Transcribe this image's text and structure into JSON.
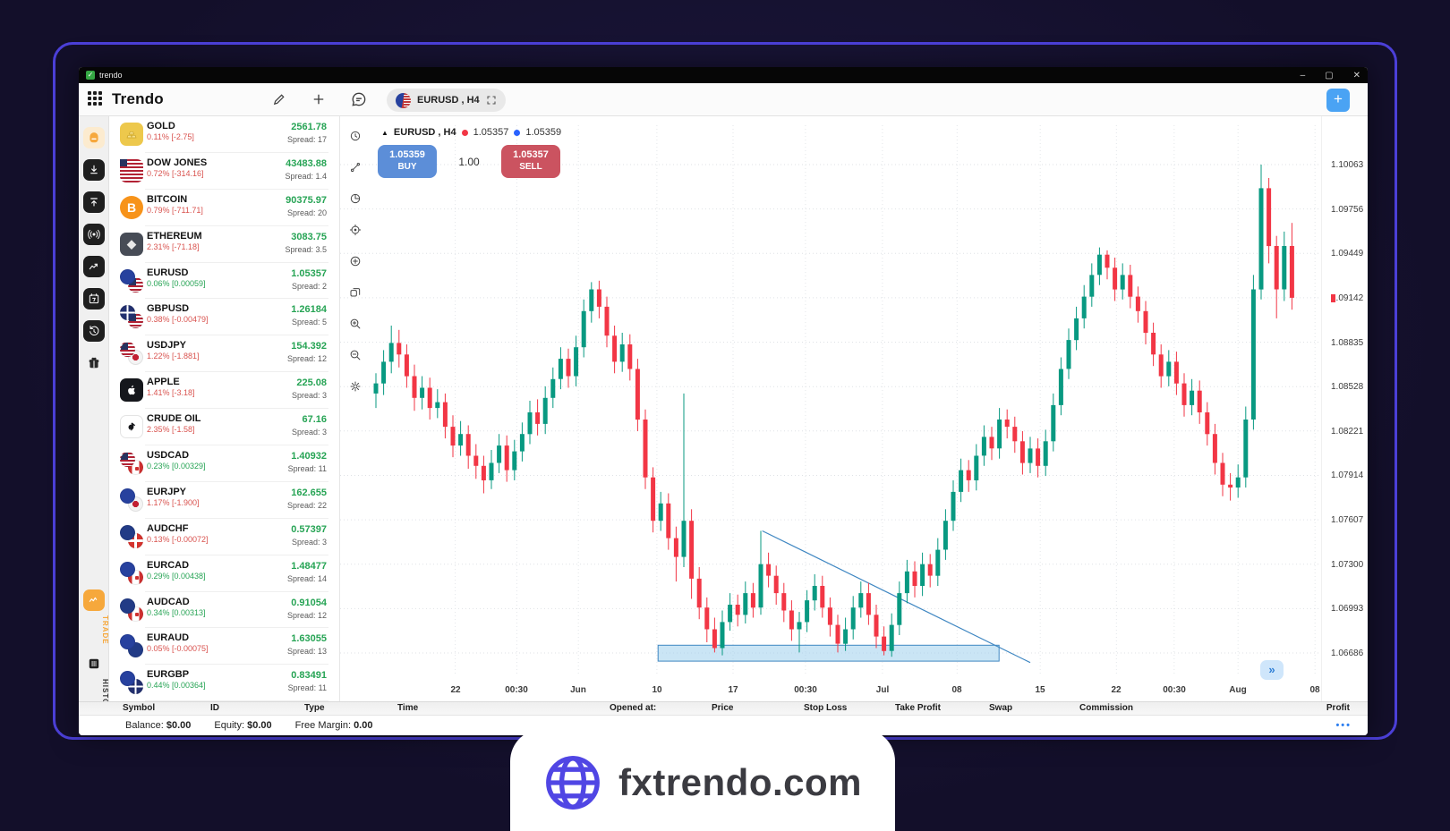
{
  "window": {
    "title": "trendo",
    "controls": {
      "minimize": "–",
      "maximize": "▢",
      "close": "✕"
    }
  },
  "toolbar": {
    "app_name": "Trendo",
    "icons": [
      "pencil-icon",
      "plus-icon",
      "chat-icon"
    ],
    "tab": {
      "label": "EURUSD , H4",
      "flag_icon": "eurusd-flag-icon",
      "expand_icon": "expand-icon"
    },
    "new_chart_label": "+"
  },
  "sidebar": {
    "items": [
      {
        "name": "home-icon",
        "style": "home"
      },
      {
        "name": "download-icon",
        "style": "dark"
      },
      {
        "name": "upload-icon",
        "style": "dark"
      },
      {
        "name": "signal-icon",
        "style": "dark"
      },
      {
        "name": "chart-icon",
        "style": "dark"
      },
      {
        "name": "calendar-icon",
        "style": "dark"
      },
      {
        "name": "history-icon",
        "style": "dark"
      },
      {
        "name": "gift-icon",
        "style": "plain"
      }
    ],
    "trade_label": "TRADE",
    "history_label": "HISTORY",
    "trade_color": "#f6a83c",
    "history_color": "#333333"
  },
  "watchlist": [
    {
      "name": "GOLD",
      "change": "0.11% [-2.75]",
      "trend": "down",
      "price": "2561.78",
      "spread": "Spread: 17",
      "icon": "gold-icon"
    },
    {
      "name": "DOW JONES",
      "change": "0.72% [-314.16]",
      "trend": "down",
      "price": "43483.88",
      "spread": "Spread: 1.4",
      "icon": "us-flag-icon"
    },
    {
      "name": "BITCOIN",
      "change": "0.79% [-711.71]",
      "trend": "down",
      "price": "90375.97",
      "spread": "Spread: 20",
      "icon": "bitcoin-icon"
    },
    {
      "name": "ETHEREUM",
      "change": "2.31% [-71.18]",
      "trend": "down",
      "price": "3083.75",
      "spread": "Spread: 3.5",
      "icon": "ethereum-icon"
    },
    {
      "name": "EURUSD",
      "change": "0.06% [0.00059]",
      "trend": "up",
      "price": "1.05357",
      "spread": "Spread: 2",
      "icon": "eurusd-flag-icon"
    },
    {
      "name": "GBPUSD",
      "change": "0.38% [-0.00479]",
      "trend": "down",
      "price": "1.26184",
      "spread": "Spread: 5",
      "icon": "gbpusd-flag-icon"
    },
    {
      "name": "USDJPY",
      "change": "1.22% [-1.881]",
      "trend": "down",
      "price": "154.392",
      "spread": "Spread: 12",
      "icon": "usdjpy-flag-icon"
    },
    {
      "name": "APPLE",
      "change": "1.41% [-3.18]",
      "trend": "down",
      "price": "225.08",
      "spread": "Spread: 3",
      "icon": "apple-icon"
    },
    {
      "name": "CRUDE OIL",
      "change": "2.35% [-1.58]",
      "trend": "down",
      "price": "67.16",
      "spread": "Spread: 3",
      "icon": "oil-icon"
    },
    {
      "name": "USDCAD",
      "change": "0.23% [0.00329]",
      "trend": "up",
      "price": "1.40932",
      "spread": "Spread: 11",
      "icon": "usdcad-flag-icon"
    },
    {
      "name": "EURJPY",
      "change": "1.17% [-1.900]",
      "trend": "down",
      "price": "162.655",
      "spread": "Spread: 22",
      "icon": "eurjpy-flag-icon"
    },
    {
      "name": "AUDCHF",
      "change": "0.13% [-0.00072]",
      "trend": "down",
      "price": "0.57397",
      "spread": "Spread: 3",
      "icon": "audchf-flag-icon"
    },
    {
      "name": "EURCAD",
      "change": "0.29% [0.00438]",
      "trend": "up",
      "price": "1.48477",
      "spread": "Spread: 14",
      "icon": "eurcad-flag-icon"
    },
    {
      "name": "AUDCAD",
      "change": "0.34% [0.00313]",
      "trend": "up",
      "price": "0.91054",
      "spread": "Spread: 12",
      "icon": "audcad-flag-icon"
    },
    {
      "name": "EURAUD",
      "change": "0.05% [-0.00075]",
      "trend": "down",
      "price": "1.63055",
      "spread": "Spread: 13",
      "icon": "euraud-flag-icon"
    },
    {
      "name": "EURGBP",
      "change": "0.44% [0.00364]",
      "trend": "up",
      "price": "0.83491",
      "spread": "Spread: 11",
      "icon": "eurgbp-flag-icon"
    }
  ],
  "chart": {
    "header": {
      "symbol_label": "EURUSD , H4",
      "bid": "1.05357",
      "ask": "1.05359",
      "bid_dot_color": "#f23645",
      "ask_dot_color": "#2962ff"
    },
    "buy_button": {
      "price": "1.05359",
      "label": "BUY"
    },
    "volume": "1.00",
    "sell_button": {
      "price": "1.05357",
      "label": "SELL"
    },
    "toolbar_icons": [
      "clock-icon",
      "trendline-tool-icon",
      "interval-icon",
      "crosshair-icon",
      "add-circle-icon",
      "layers-icon",
      "zoom-in-icon",
      "zoom-out-icon",
      "settings-icon"
    ],
    "fast_forward_label": "»"
  },
  "chart_data": {
    "type": "candlestick",
    "symbol": "EURUSD",
    "timeframe": "H4",
    "title": "EURUSD , H4",
    "colors": {
      "up": "#089981",
      "down": "#f23645",
      "drawing": "#3f87c2",
      "drawing_fill": "#9ecfec"
    },
    "y_ticks": [
      1.10063,
      1.09756,
      1.09449,
      1.09142,
      1.08835,
      1.08528,
      1.08221,
      1.07914,
      1.07607,
      1.073,
      1.06993,
      1.06686
    ],
    "x_ticks": [
      {
        "label": "22",
        "index": 10.3
      },
      {
        "label": "00:30",
        "index": 18.3
      },
      {
        "label": "Jun",
        "index": 26.3
      },
      {
        "label": "10",
        "index": 36.5
      },
      {
        "label": "17",
        "index": 46.4
      },
      {
        "label": "00:30",
        "index": 55.8
      },
      {
        "label": "Jul",
        "index": 65.8
      },
      {
        "label": "08",
        "index": 75.5
      },
      {
        "label": "15",
        "index": 86.3
      },
      {
        "label": "22",
        "index": 96.2
      },
      {
        "label": "00:30",
        "index": 103.7
      },
      {
        "label": "Aug",
        "index": 112.0
      },
      {
        "label": "08",
        "index": 122.0
      }
    ],
    "last_price": 1.09142,
    "drawings": {
      "trendline": {
        "from": {
          "index": 50.2,
          "price": 1.0753
        },
        "to": {
          "index": 85,
          "price": 1.0662
        }
      },
      "rectangle": {
        "from_index": 37,
        "to_index": 80.6,
        "top": 1.0674,
        "bottom": 1.0663
      }
    },
    "candles": [
      [
        1.0848,
        1.0862,
        1.0838,
        1.0855
      ],
      [
        1.0855,
        1.0878,
        1.0847,
        1.087
      ],
      [
        1.087,
        1.0895,
        1.0862,
        1.0883
      ],
      [
        1.0883,
        1.0892,
        1.0866,
        1.0875
      ],
      [
        1.0875,
        1.0882,
        1.0852,
        1.086
      ],
      [
        1.086,
        1.0868,
        1.0836,
        1.0845
      ],
      [
        1.0845,
        1.086,
        1.0837,
        1.0852
      ],
      [
        1.0852,
        1.0859,
        1.083,
        1.0838
      ],
      [
        1.0838,
        1.0851,
        1.0831,
        1.0842
      ],
      [
        1.0842,
        1.0848,
        1.0817,
        1.0825
      ],
      [
        1.0825,
        1.0833,
        1.0804,
        1.0812
      ],
      [
        1.0812,
        1.0829,
        1.0805,
        1.082
      ],
      [
        1.082,
        1.0826,
        1.0796,
        1.0805
      ],
      [
        1.0805,
        1.0813,
        1.0789,
        1.0798
      ],
      [
        1.0798,
        1.0805,
        1.0779,
        1.0788
      ],
      [
        1.0788,
        1.0809,
        1.0782,
        1.08
      ],
      [
        1.08,
        1.082,
        1.0793,
        1.0812
      ],
      [
        1.0812,
        1.0819,
        1.0787,
        1.0795
      ],
      [
        1.0795,
        1.0816,
        1.0788,
        1.0808
      ],
      [
        1.0808,
        1.0828,
        1.0801,
        1.082
      ],
      [
        1.082,
        1.0843,
        1.0813,
        1.0835
      ],
      [
        1.0835,
        1.0844,
        1.0819,
        1.0827
      ],
      [
        1.0827,
        1.0853,
        1.082,
        1.0845
      ],
      [
        1.0845,
        1.0866,
        1.0838,
        1.0858
      ],
      [
        1.0858,
        1.088,
        1.0851,
        1.0872
      ],
      [
        1.0872,
        1.0879,
        1.0852,
        1.086
      ],
      [
        1.086,
        1.0888,
        1.0853,
        1.088
      ],
      [
        1.088,
        1.0913,
        1.0873,
        1.0905
      ],
      [
        1.0905,
        1.0925,
        1.0897,
        1.092
      ],
      [
        1.092,
        1.0926,
        1.09,
        1.0908
      ],
      [
        1.0908,
        1.0915,
        1.088,
        1.0888
      ],
      [
        1.0888,
        1.0895,
        1.0862,
        1.087
      ],
      [
        1.087,
        1.089,
        1.0863,
        1.0882
      ],
      [
        1.0882,
        1.0889,
        1.0857,
        1.0865
      ],
      [
        1.0865,
        1.0872,
        1.0822,
        1.083
      ],
      [
        1.083,
        1.0837,
        1.0782,
        1.079
      ],
      [
        1.079,
        1.0797,
        1.0752,
        1.076
      ],
      [
        1.076,
        1.078,
        1.0753,
        1.0772
      ],
      [
        1.0772,
        1.0779,
        1.074,
        1.0748
      ],
      [
        1.0748,
        1.0756,
        1.0718,
        1.0735
      ],
      [
        1.0735,
        1.0848,
        1.0728,
        1.076
      ],
      [
        1.076,
        1.0768,
        1.0706,
        1.072
      ],
      [
        1.072,
        1.0728,
        1.0692,
        1.07
      ],
      [
        1.07,
        1.0707,
        1.0676,
        1.0685
      ],
      [
        1.0685,
        1.0693,
        1.0669,
        1.0672
      ],
      [
        1.0672,
        1.0698,
        1.0667,
        1.069
      ],
      [
        1.069,
        1.071,
        1.0684,
        1.0702
      ],
      [
        1.0702,
        1.0709,
        1.0687,
        1.0695
      ],
      [
        1.0695,
        1.0718,
        1.0689,
        1.071
      ],
      [
        1.071,
        1.0717,
        1.0693,
        1.07
      ],
      [
        1.07,
        1.0753,
        1.0695,
        1.073
      ],
      [
        1.073,
        1.0738,
        1.0714,
        1.0722
      ],
      [
        1.0722,
        1.0729,
        1.0702,
        1.071
      ],
      [
        1.071,
        1.0717,
        1.069,
        1.0698
      ],
      [
        1.0698,
        1.0705,
        1.0677,
        1.0685
      ],
      [
        1.0685,
        1.0697,
        1.0669,
        1.069
      ],
      [
        1.069,
        1.0712,
        1.0683,
        1.0705
      ],
      [
        1.0705,
        1.0723,
        1.0698,
        1.0715
      ],
      [
        1.0715,
        1.0722,
        1.0693,
        1.07
      ],
      [
        1.07,
        1.0707,
        1.068,
        1.0688
      ],
      [
        1.0688,
        1.0695,
        1.0669,
        1.0675
      ],
      [
        1.0675,
        1.0693,
        1.067,
        1.0685
      ],
      [
        1.0685,
        1.0708,
        1.0678,
        1.07
      ],
      [
        1.07,
        1.0718,
        1.0693,
        1.071
      ],
      [
        1.071,
        1.0717,
        1.0688,
        1.0695
      ],
      [
        1.0695,
        1.0702,
        1.0672,
        1.068
      ],
      [
        1.068,
        1.0687,
        1.0667,
        1.067
      ],
      [
        1.067,
        1.0696,
        1.0666,
        1.0688
      ],
      [
        1.0688,
        1.0718,
        1.0681,
        1.071
      ],
      [
        1.071,
        1.0733,
        1.0703,
        1.0725
      ],
      [
        1.0725,
        1.0732,
        1.0707,
        1.0715
      ],
      [
        1.0715,
        1.0738,
        1.0708,
        1.073
      ],
      [
        1.073,
        1.0737,
        1.0714,
        1.0722
      ],
      [
        1.0722,
        1.0748,
        1.0715,
        1.074
      ],
      [
        1.074,
        1.0768,
        1.0733,
        1.076
      ],
      [
        1.076,
        1.0788,
        1.0753,
        1.078
      ],
      [
        1.078,
        1.0803,
        1.0773,
        1.0795
      ],
      [
        1.0795,
        1.0802,
        1.078,
        1.0788
      ],
      [
        1.0788,
        1.0813,
        1.0781,
        1.0805
      ],
      [
        1.0805,
        1.0826,
        1.0798,
        1.0818
      ],
      [
        1.0818,
        1.0825,
        1.0802,
        1.081
      ],
      [
        1.081,
        1.0838,
        1.0803,
        1.083
      ],
      [
        1.083,
        1.0837,
        1.0817,
        1.0825
      ],
      [
        1.0825,
        1.0832,
        1.0807,
        1.0815
      ],
      [
        1.0815,
        1.0822,
        1.0792,
        1.08
      ],
      [
        1.08,
        1.0818,
        1.0793,
        1.081
      ],
      [
        1.081,
        1.0817,
        1.079,
        1.0798
      ],
      [
        1.0798,
        1.0823,
        1.0791,
        1.0815
      ],
      [
        1.0815,
        1.0848,
        1.0808,
        1.084
      ],
      [
        1.084,
        1.0873,
        1.0833,
        1.0865
      ],
      [
        1.0865,
        1.0893,
        1.0858,
        1.0885
      ],
      [
        1.0885,
        1.0908,
        1.0878,
        1.09
      ],
      [
        1.09,
        1.0923,
        1.0893,
        1.0915
      ],
      [
        1.0915,
        1.0938,
        1.0908,
        1.093
      ],
      [
        1.093,
        1.0949,
        1.0923,
        1.0944
      ],
      [
        1.0944,
        1.0947,
        1.0927,
        1.0935
      ],
      [
        1.0935,
        1.0942,
        1.0912,
        1.092
      ],
      [
        1.092,
        1.0938,
        1.0913,
        1.093
      ],
      [
        1.093,
        1.0937,
        1.0907,
        1.0915
      ],
      [
        1.0915,
        1.0922,
        1.0897,
        1.0905
      ],
      [
        1.0905,
        1.0912,
        1.0882,
        1.089
      ],
      [
        1.089,
        1.0897,
        1.0867,
        1.0875
      ],
      [
        1.0875,
        1.0882,
        1.0852,
        1.086
      ],
      [
        1.086,
        1.0878,
        1.0853,
        1.087
      ],
      [
        1.087,
        1.0877,
        1.0847,
        1.0855
      ],
      [
        1.0855,
        1.0862,
        1.0832,
        1.084
      ],
      [
        1.084,
        1.0858,
        1.0833,
        1.085
      ],
      [
        1.085,
        1.0857,
        1.0827,
        1.0835
      ],
      [
        1.0835,
        1.0842,
        1.0812,
        1.082
      ],
      [
        1.082,
        1.0827,
        1.0792,
        1.08
      ],
      [
        1.08,
        1.0807,
        1.0777,
        1.0785
      ],
      [
        1.0785,
        1.0793,
        1.0774,
        1.0783
      ],
      [
        1.0783,
        1.0799,
        1.0776,
        1.079
      ],
      [
        1.079,
        1.0839,
        1.0783,
        1.083
      ],
      [
        1.083,
        1.093,
        1.0823,
        1.092
      ],
      [
        1.092,
        1.10063,
        1.0913,
        1.099
      ],
      [
        1.099,
        1.0997,
        1.0938,
        1.095
      ],
      [
        1.095,
        1.0957,
        1.09,
        1.092
      ],
      [
        1.092,
        1.096,
        1.0912,
        1.095
      ],
      [
        1.095,
        1.0966,
        1.0906,
        1.09142
      ]
    ]
  },
  "positions_table": {
    "columns": [
      "Symbol",
      "ID",
      "Type",
      "Time",
      "Opened at:",
      "Price",
      "Stop Loss",
      "Take Profit",
      "Swap",
      "Commission",
      "Profit"
    ]
  },
  "status_bar": {
    "balance_label": "Balance:",
    "balance": "$0.00",
    "equity_label": "Equity:",
    "equity": "$0.00",
    "free_margin_label": "Free Margin:",
    "free_margin": "0.00",
    "more": "•••"
  },
  "footer_badge": {
    "text": "fxtrendo.com"
  }
}
